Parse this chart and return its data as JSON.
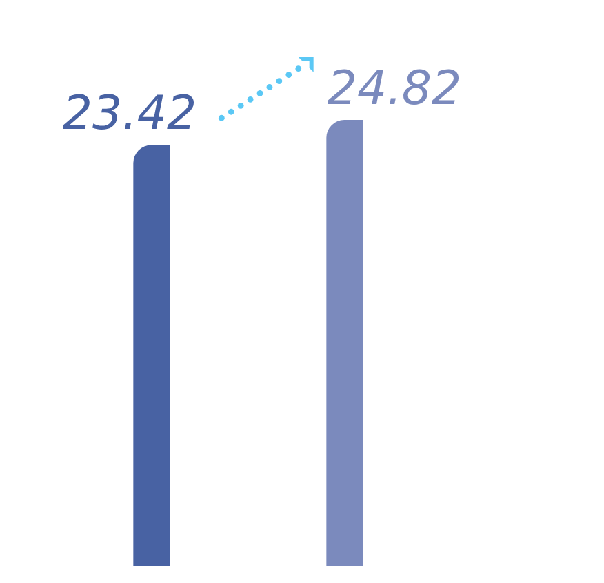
{
  "chart_data": {
    "type": "bar",
    "categories": [
      null,
      null
    ],
    "values": [
      23.42,
      24.82
    ],
    "colors": [
      "#4862a3",
      "#7b8abd"
    ],
    "data_labels": true
  }
}
